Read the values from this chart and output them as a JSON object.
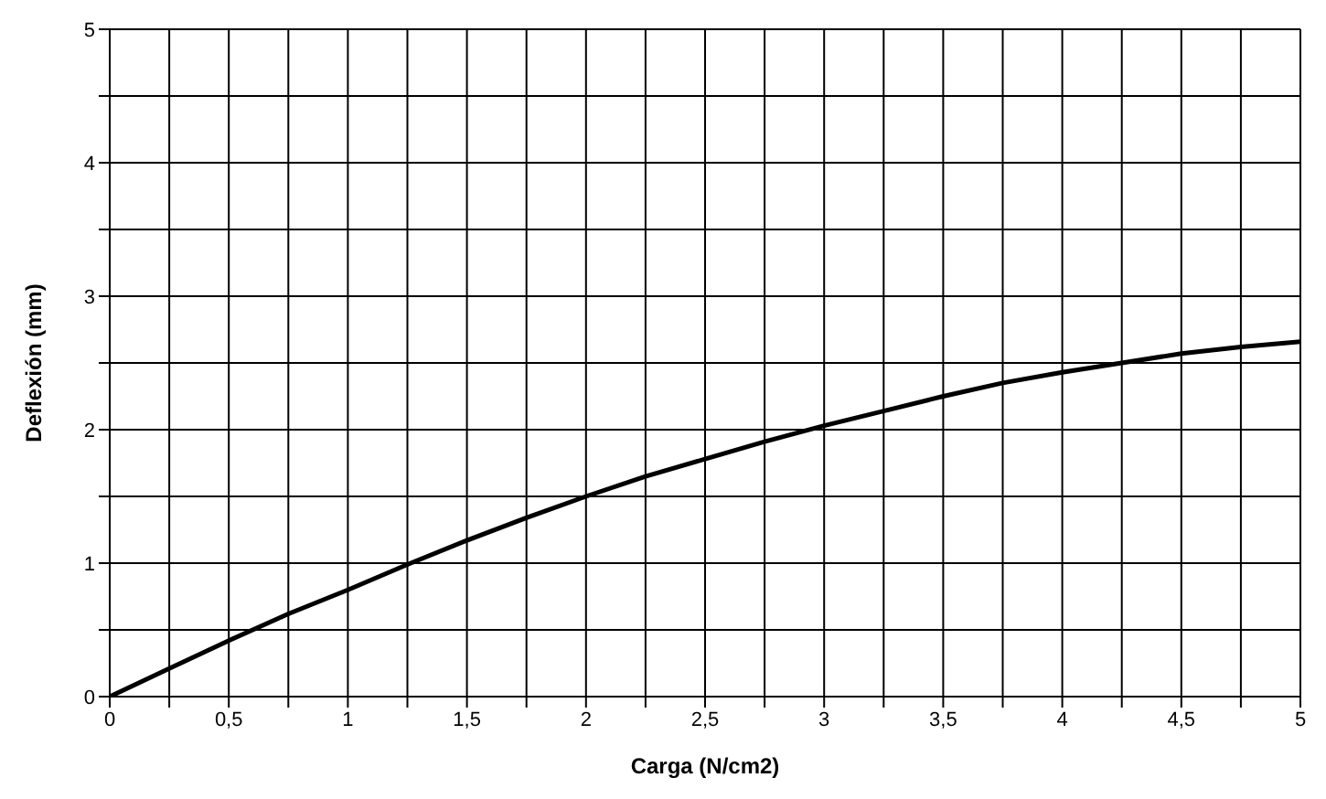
{
  "chart_data": {
    "type": "line",
    "xlabel": "Carga (N/cm2)",
    "ylabel": "Deflexión (mm)",
    "x": [
      0,
      0.25,
      0.5,
      0.75,
      1,
      1.25,
      1.5,
      1.75,
      2,
      2.25,
      2.5,
      2.75,
      3,
      3.25,
      3.5,
      3.75,
      4,
      4.25,
      4.5,
      4.75,
      5
    ],
    "series": [
      {
        "color": "#000000",
        "values": [
          0,
          0.21,
          0.42,
          0.62,
          0.8,
          0.99,
          1.17,
          1.34,
          1.5,
          1.65,
          1.78,
          1.91,
          2.03,
          2.14,
          2.25,
          2.35,
          2.43,
          2.5,
          2.57,
          2.62,
          2.66
        ]
      }
    ],
    "xlim": [
      0,
      5
    ],
    "xticks": [
      0,
      {
        "value": 0.25,
        "label": null
      },
      {
        "value": 0.5,
        "label": "0,5"
      },
      {
        "value": 0.75,
        "label": null
      },
      1,
      {
        "value": 1.25,
        "label": null
      },
      {
        "value": 1.5,
        "label": "1,5"
      },
      {
        "value": 1.75,
        "label": null
      },
      2,
      {
        "value": 2.25,
        "label": null
      },
      {
        "value": 2.5,
        "label": "2,5"
      },
      {
        "value": 2.75,
        "label": null
      },
      3,
      {
        "value": 3.25,
        "label": null
      },
      {
        "value": 3.5,
        "label": "3,5"
      },
      {
        "value": 3.75,
        "label": null
      },
      4,
      {
        "value": 4.25,
        "label": null
      },
      {
        "value": 4.5,
        "label": "4,5"
      },
      {
        "value": 4.75,
        "label": null
      },
      5
    ],
    "ylim": [
      0,
      5
    ],
    "yticks": [
      0,
      {
        "value": 0.5,
        "label": null
      },
      1,
      {
        "value": 1.5,
        "label": null
      },
      2,
      {
        "value": 2.5,
        "label": null
      },
      3,
      {
        "value": 3.5,
        "label": null
      },
      4,
      {
        "value": 4.5,
        "label": null
      },
      5
    ],
    "grid": true,
    "marker": "none",
    "line_style": "solid"
  }
}
